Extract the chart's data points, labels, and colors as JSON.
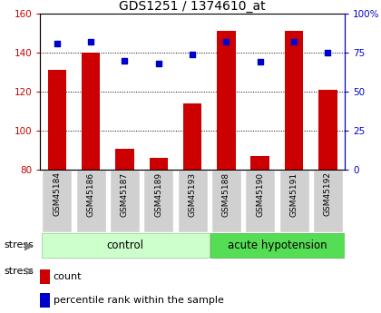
{
  "title": "GDS1251 / 1374610_at",
  "samples": [
    "GSM45184",
    "GSM45186",
    "GSM45187",
    "GSM45189",
    "GSM45193",
    "GSM45188",
    "GSM45190",
    "GSM45191",
    "GSM45192"
  ],
  "count": [
    131,
    140,
    91,
    86,
    114,
    151,
    87,
    151,
    121
  ],
  "percentile": [
    81,
    82,
    70,
    68,
    74,
    82,
    69,
    82,
    75
  ],
  "groups": [
    {
      "label": "control",
      "start": 0,
      "end": 5,
      "color": "#ccffcc",
      "border": "#88cc88"
    },
    {
      "label": "acute hypotension",
      "start": 5,
      "end": 9,
      "color": "#55dd55",
      "border": "#44aa44"
    }
  ],
  "ylim_left": [
    80,
    160
  ],
  "ylim_right": [
    0,
    100
  ],
  "yticks_left": [
    80,
    100,
    120,
    140,
    160
  ],
  "yticks_right": [
    0,
    25,
    50,
    75,
    100
  ],
  "ytick_labels_right": [
    "0",
    "25",
    "50",
    "75",
    "100%"
  ],
  "bar_color": "#cc0000",
  "dot_color": "#0000cc",
  "bar_width": 0.55,
  "legend_count": "count",
  "legend_pct": "percentile rank within the sample",
  "title_fontsize": 10,
  "tick_label_fontsize": 7.5,
  "group_label_fontsize": 8.5,
  "sample_fontsize": 6.5
}
